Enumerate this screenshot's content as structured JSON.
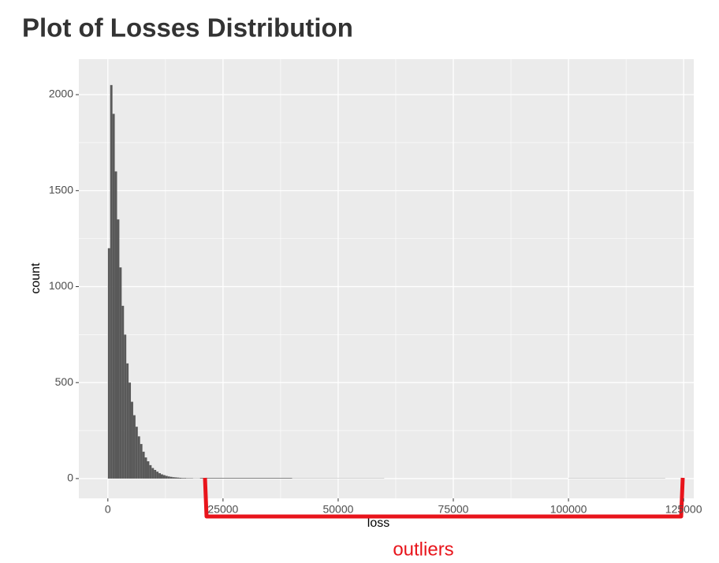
{
  "chart_data": {
    "type": "histogram",
    "title": "Plot of Losses Distribution",
    "x_label": "loss",
    "y_label": "count",
    "annotation": "outliers",
    "color": "#595959",
    "annotation_color": "#e8141b",
    "bins": [
      0,
      500,
      1000,
      1500,
      2000,
      2500,
      3000,
      3500,
      4000,
      4500,
      5000,
      5500,
      6000,
      6500,
      7000,
      7500,
      8000,
      8500,
      9000,
      9500,
      10000,
      10500,
      11000,
      11500,
      12000,
      12500,
      13000,
      13500,
      14000,
      14500,
      15000,
      15500,
      16000,
      16500,
      17000,
      17500,
      18000,
      18500,
      19000,
      19500,
      20000,
      40000,
      60000,
      80000,
      100000,
      121000
    ],
    "counts": [
      1200,
      2050,
      1900,
      1600,
      1350,
      1100,
      900,
      750,
      600,
      500,
      400,
      330,
      270,
      220,
      180,
      140,
      110,
      90,
      70,
      55,
      45,
      36,
      28,
      22,
      18,
      14,
      11,
      9,
      7,
      6,
      5,
      4,
      3,
      3,
      2,
      2,
      2,
      1,
      1,
      1,
      3,
      1,
      0,
      0,
      1
    ],
    "xlim": [
      -6300,
      127200
    ],
    "ylim": [
      -103,
      2185
    ],
    "xticks": [
      0,
      25000,
      50000,
      75000,
      100000,
      125000
    ],
    "yticks": [
      0,
      500,
      1000,
      1500,
      2000
    ],
    "grid": true
  }
}
